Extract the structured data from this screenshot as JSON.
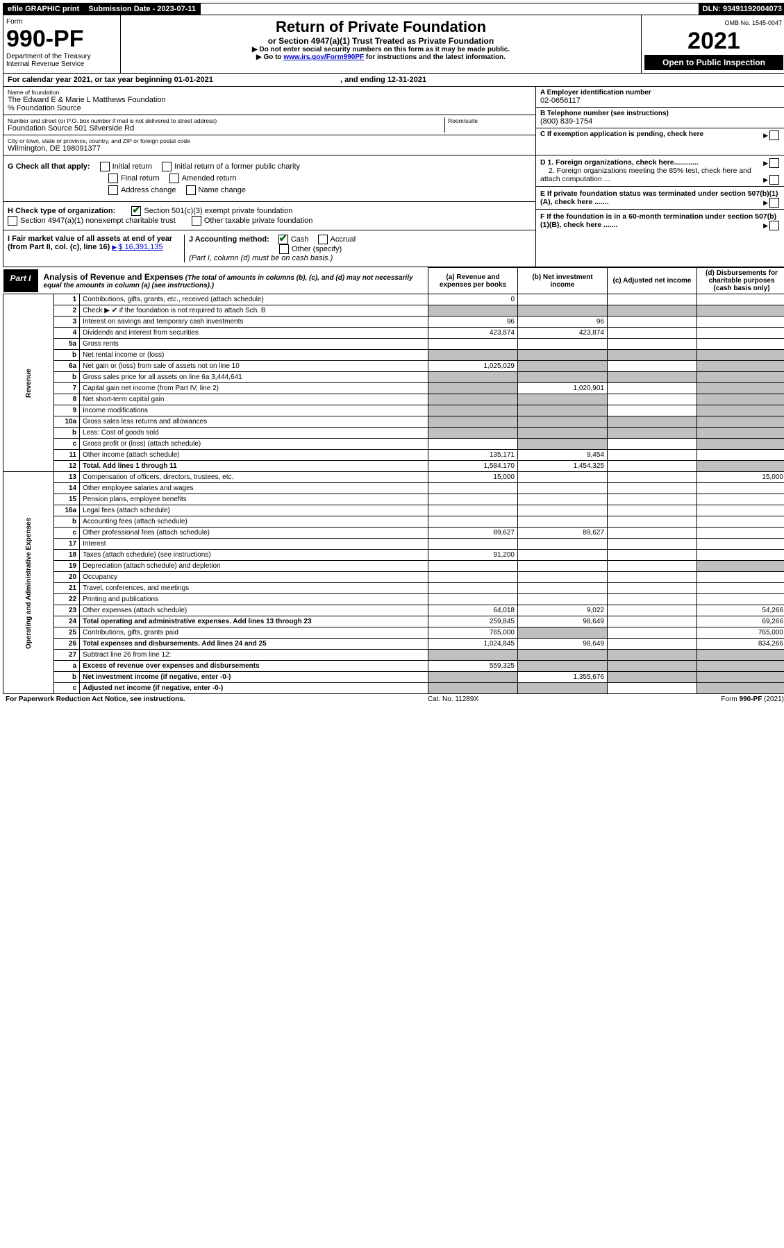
{
  "header": {
    "efile": "efile GRAPHIC print",
    "sub_date_label": "Submission Date - 2023-07-11",
    "dln": "DLN: 93491192004073",
    "omb": "OMB No. 1545-0047"
  },
  "title_block": {
    "form_label": "Form",
    "form_no": "990-PF",
    "dept": "Department of the Treasury",
    "irs": "Internal Revenue Service",
    "title": "Return of Private Foundation",
    "subtitle": "or Section 4947(a)(1) Trust Treated as Private Foundation",
    "note1": "▶ Do not enter social security numbers on this form as it may be made public.",
    "note2_prefix": "▶ Go to ",
    "note2_link": "www.irs.gov/Form990PF",
    "note2_suffix": " for instructions and the latest information.",
    "year": "2021",
    "open_public": "Open to Public Inspection"
  },
  "calendar": {
    "text": "For calendar year 2021, or tax year beginning 01-01-2021",
    "ending": ", and ending 12-31-2021"
  },
  "entity": {
    "name_label": "Name of foundation",
    "name": "The Edward E & Marie L Matthews Foundation",
    "care_of": "% Foundation Source",
    "street_label": "Number and street (or P.O. box number if mail is not delivered to street address)",
    "street": "Foundation Source 501 Silverside Rd",
    "room_label": "Room/suite",
    "room": "",
    "city_label": "City or town, state or province, country, and ZIP or foreign postal code",
    "city": "Wilmington, DE  198091377",
    "a_label": "A Employer identification number",
    "a_val": "02-0656117",
    "b_label": "B Telephone number (see instructions)",
    "b_val": "(800) 839-1754",
    "c_label": "C If exemption application is pending, check here",
    "d1_label": "D 1. Foreign organizations, check here............",
    "d2_label": "2. Foreign organizations meeting the 85% test, check here and attach computation ...",
    "e_label": "E  If private foundation status was terminated under section 507(b)(1)(A), check here .......",
    "f_label": "F  If the foundation is in a 60-month termination under section 507(b)(1)(B), check here .......",
    "g_label": "G Check all that apply:",
    "g_opts": [
      "Initial return",
      "Initial return of a former public charity",
      "Final return",
      "Amended return",
      "Address change",
      "Name change"
    ],
    "h_label": "H Check type of organization:",
    "h_opt1": "Section 501(c)(3) exempt private foundation",
    "h_opt2": "Section 4947(a)(1) nonexempt charitable trust",
    "h_opt3": "Other taxable private foundation",
    "i_label": "I Fair market value of all assets at end of year (from Part II, col. (c), line 16)",
    "i_val": "$  16,391,135",
    "j_label": "J Accounting method:",
    "j_cash": "Cash",
    "j_accrual": "Accrual",
    "j_other": "Other (specify)",
    "j_note": "(Part I, column (d) must be on cash basis.)"
  },
  "part1": {
    "label": "Part I",
    "title": "Analysis of Revenue and Expenses",
    "subtitle": "(The total of amounts in columns (b), (c), and (d) may not necessarily equal the amounts in column (a) (see instructions).)",
    "col_a": "(a)  Revenue and expenses per books",
    "col_b": "(b)  Net investment income",
    "col_c": "(c)  Adjusted net income",
    "col_d": "(d)  Disbursements for charitable purposes (cash basis only)"
  },
  "rows": [
    {
      "n": "1",
      "label": "Contributions, gifts, grants, etc., received (attach schedule)",
      "a": "0",
      "b": "",
      "c": "",
      "d": ""
    },
    {
      "n": "2",
      "label": "Check ▶ ✔ if the foundation is not required to attach Sch. B",
      "a": "",
      "b": "",
      "c": "",
      "d": "",
      "grey_a": true,
      "grey_b": true,
      "grey_c": true,
      "grey_d": true
    },
    {
      "n": "3",
      "label": "Interest on savings and temporary cash investments",
      "a": "96",
      "b": "96",
      "c": "",
      "d": ""
    },
    {
      "n": "4",
      "label": "Dividends and interest from securities",
      "a": "423,874",
      "b": "423,874",
      "c": "",
      "d": ""
    },
    {
      "n": "5a",
      "label": "Gross rents",
      "a": "",
      "b": "",
      "c": "",
      "d": ""
    },
    {
      "n": "b",
      "label": "Net rental income or (loss)",
      "a": "",
      "b": "",
      "c": "",
      "d": "",
      "grey_a": true,
      "grey_b": true,
      "grey_c": true,
      "grey_d": true
    },
    {
      "n": "6a",
      "label": "Net gain or (loss) from sale of assets not on line 10",
      "a": "1,025,029",
      "b": "",
      "c": "",
      "d": "",
      "grey_b": true,
      "grey_d": true
    },
    {
      "n": "b",
      "label": "Gross sales price for all assets on line 6a             3,444,641",
      "a": "",
      "b": "",
      "c": "",
      "d": "",
      "grey_a": true,
      "grey_b": true,
      "grey_c": true,
      "grey_d": true
    },
    {
      "n": "7",
      "label": "Capital gain net income (from Part IV, line 2)",
      "a": "",
      "b": "1,020,901",
      "c": "",
      "d": "",
      "grey_a": true,
      "grey_d": true
    },
    {
      "n": "8",
      "label": "Net short-term capital gain",
      "a": "",
      "b": "",
      "c": "",
      "d": "",
      "grey_a": true,
      "grey_b": true,
      "grey_d": true
    },
    {
      "n": "9",
      "label": "Income modifications",
      "a": "",
      "b": "",
      "c": "",
      "d": "",
      "grey_a": true,
      "grey_b": true,
      "grey_d": true
    },
    {
      "n": "10a",
      "label": "Gross sales less returns and allowances",
      "a": "",
      "b": "",
      "c": "",
      "d": "",
      "grey_a": true,
      "grey_b": true,
      "grey_c": true,
      "grey_d": true
    },
    {
      "n": "b",
      "label": "Less: Cost of goods sold",
      "a": "",
      "b": "",
      "c": "",
      "d": "",
      "grey_a": true,
      "grey_b": true,
      "grey_c": true,
      "grey_d": true
    },
    {
      "n": "c",
      "label": "Gross profit or (loss) (attach schedule)",
      "a": "",
      "b": "",
      "c": "",
      "d": "",
      "grey_b": true,
      "grey_d": true
    },
    {
      "n": "11",
      "label": "Other income (attach schedule)",
      "a": "135,171",
      "b": "9,454",
      "c": "",
      "d": ""
    },
    {
      "n": "12",
      "label": "Total. Add lines 1 through 11",
      "a": "1,584,170",
      "b": "1,454,325",
      "c": "",
      "d": "",
      "bold": true,
      "grey_d": true
    },
    {
      "n": "13",
      "label": "Compensation of officers, directors, trustees, etc.",
      "a": "15,000",
      "b": "",
      "c": "",
      "d": "15,000"
    },
    {
      "n": "14",
      "label": "Other employee salaries and wages",
      "a": "",
      "b": "",
      "c": "",
      "d": ""
    },
    {
      "n": "15",
      "label": "Pension plans, employee benefits",
      "a": "",
      "b": "",
      "c": "",
      "d": ""
    },
    {
      "n": "16a",
      "label": "Legal fees (attach schedule)",
      "a": "",
      "b": "",
      "c": "",
      "d": ""
    },
    {
      "n": "b",
      "label": "Accounting fees (attach schedule)",
      "a": "",
      "b": "",
      "c": "",
      "d": ""
    },
    {
      "n": "c",
      "label": "Other professional fees (attach schedule)",
      "a": "89,627",
      "b": "89,627",
      "c": "",
      "d": ""
    },
    {
      "n": "17",
      "label": "Interest",
      "a": "",
      "b": "",
      "c": "",
      "d": ""
    },
    {
      "n": "18",
      "label": "Taxes (attach schedule) (see instructions)",
      "a": "91,200",
      "b": "",
      "c": "",
      "d": ""
    },
    {
      "n": "19",
      "label": "Depreciation (attach schedule) and depletion",
      "a": "",
      "b": "",
      "c": "",
      "d": "",
      "grey_d": true
    },
    {
      "n": "20",
      "label": "Occupancy",
      "a": "",
      "b": "",
      "c": "",
      "d": ""
    },
    {
      "n": "21",
      "label": "Travel, conferences, and meetings",
      "a": "",
      "b": "",
      "c": "",
      "d": ""
    },
    {
      "n": "22",
      "label": "Printing and publications",
      "a": "",
      "b": "",
      "c": "",
      "d": ""
    },
    {
      "n": "23",
      "label": "Other expenses (attach schedule)",
      "a": "64,018",
      "b": "9,022",
      "c": "",
      "d": "54,266"
    },
    {
      "n": "24",
      "label": "Total operating and administrative expenses. Add lines 13 through 23",
      "a": "259,845",
      "b": "98,649",
      "c": "",
      "d": "69,266",
      "bold": true
    },
    {
      "n": "25",
      "label": "Contributions, gifts, grants paid",
      "a": "765,000",
      "b": "",
      "c": "",
      "d": "765,000",
      "grey_b": true
    },
    {
      "n": "26",
      "label": "Total expenses and disbursements. Add lines 24 and 25",
      "a": "1,024,845",
      "b": "98,649",
      "c": "",
      "d": "834,266",
      "bold": true
    },
    {
      "n": "27",
      "label": "Subtract line 26 from line 12:",
      "a": "",
      "b": "",
      "c": "",
      "d": "",
      "grey_a": true,
      "grey_b": true,
      "grey_c": true,
      "grey_d": true
    },
    {
      "n": "a",
      "label": "Excess of revenue over expenses and disbursements",
      "a": "559,325",
      "b": "",
      "c": "",
      "d": "",
      "bold": true,
      "grey_b": true,
      "grey_c": true,
      "grey_d": true
    },
    {
      "n": "b",
      "label": "Net investment income (if negative, enter -0-)",
      "a": "",
      "b": "1,355,676",
      "c": "",
      "d": "",
      "bold": true,
      "grey_a": true,
      "grey_c": true,
      "grey_d": true
    },
    {
      "n": "c",
      "label": "Adjusted net income (if negative, enter -0-)",
      "a": "",
      "b": "",
      "c": "",
      "d": "",
      "bold": true,
      "grey_a": true,
      "grey_b": true,
      "grey_d": true
    }
  ],
  "side_labels": {
    "revenue": "Revenue",
    "expenses": "Operating and Administrative Expenses"
  },
  "footer": {
    "left": "For Paperwork Reduction Act Notice, see instructions.",
    "center": "Cat. No. 11289X",
    "right": "Form 990-PF (2021)"
  }
}
